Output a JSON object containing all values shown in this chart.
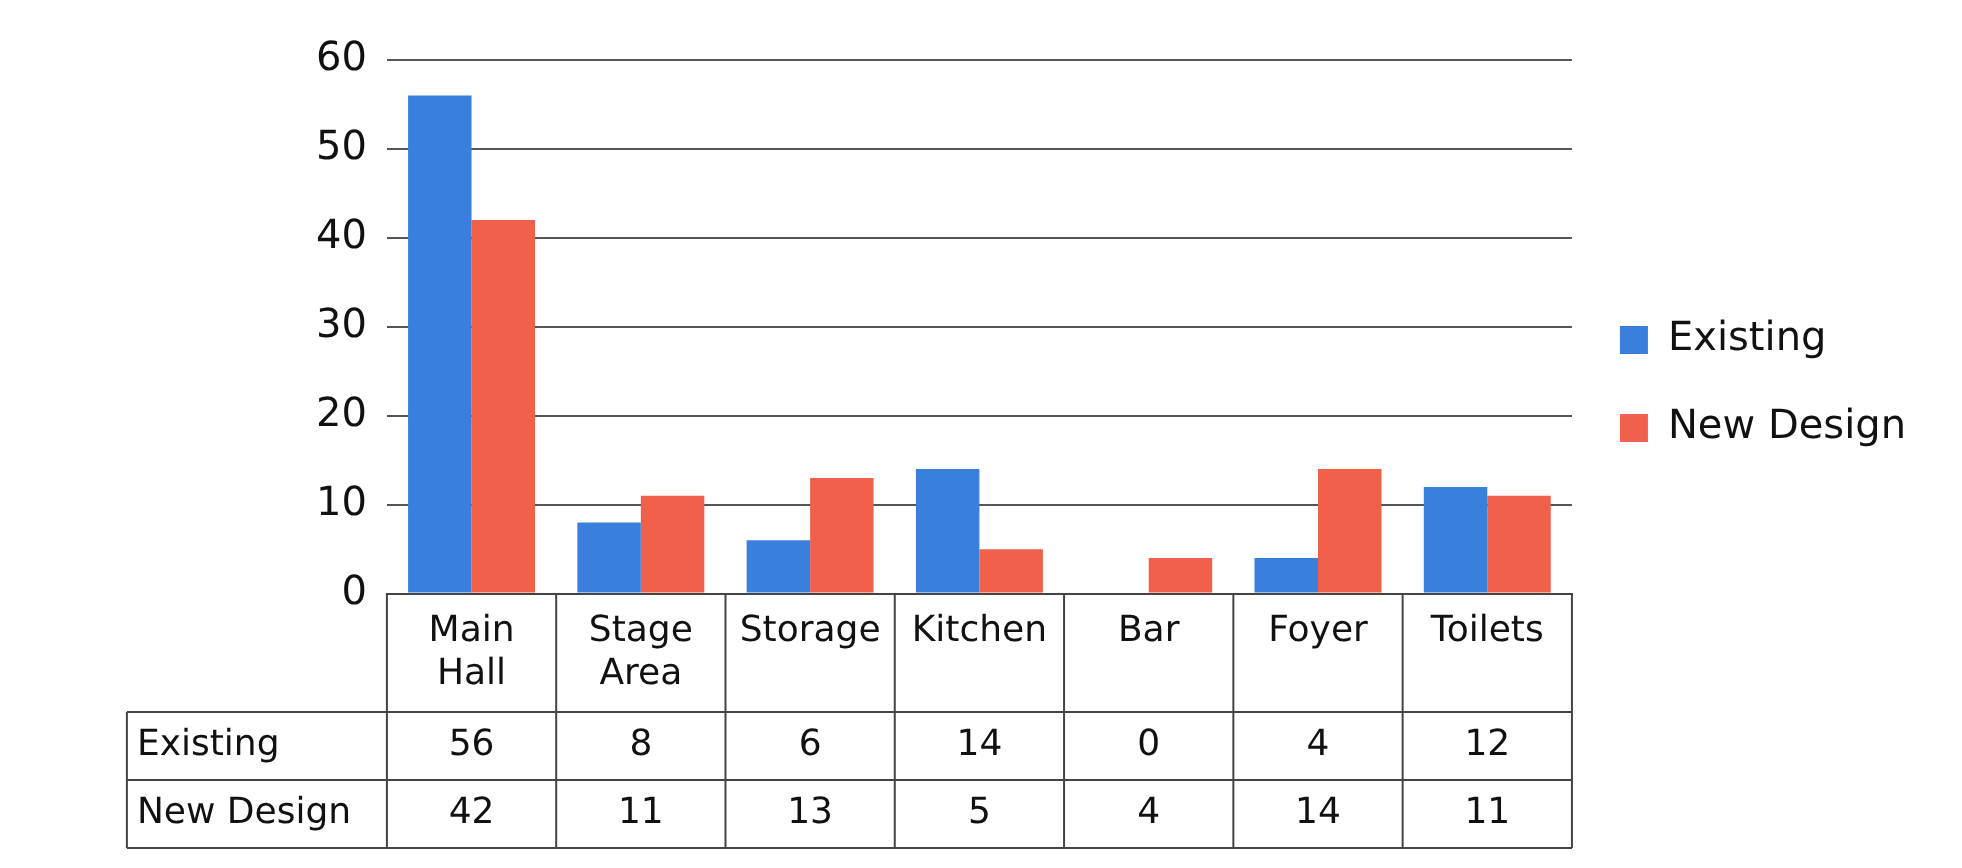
{
  "chart_data": {
    "type": "bar",
    "categories": [
      "Main Hall",
      "Stage Area",
      "Storage",
      "Kitchen",
      "Bar",
      "Foyer",
      "Toilets"
    ],
    "series": [
      {
        "name": "Existing",
        "color": "#3a7fdc",
        "values": [
          56,
          8,
          6,
          14,
          0,
          4,
          12
        ]
      },
      {
        "name": "New Design",
        "color": "#f0604a",
        "values": [
          42,
          11,
          13,
          5,
          4,
          14,
          11
        ]
      }
    ],
    "ylim": [
      0,
      60
    ],
    "yticks": [
      0,
      10,
      20,
      30,
      40,
      50,
      60
    ],
    "grid": "y",
    "legend": "right",
    "data_labels": true
  }
}
